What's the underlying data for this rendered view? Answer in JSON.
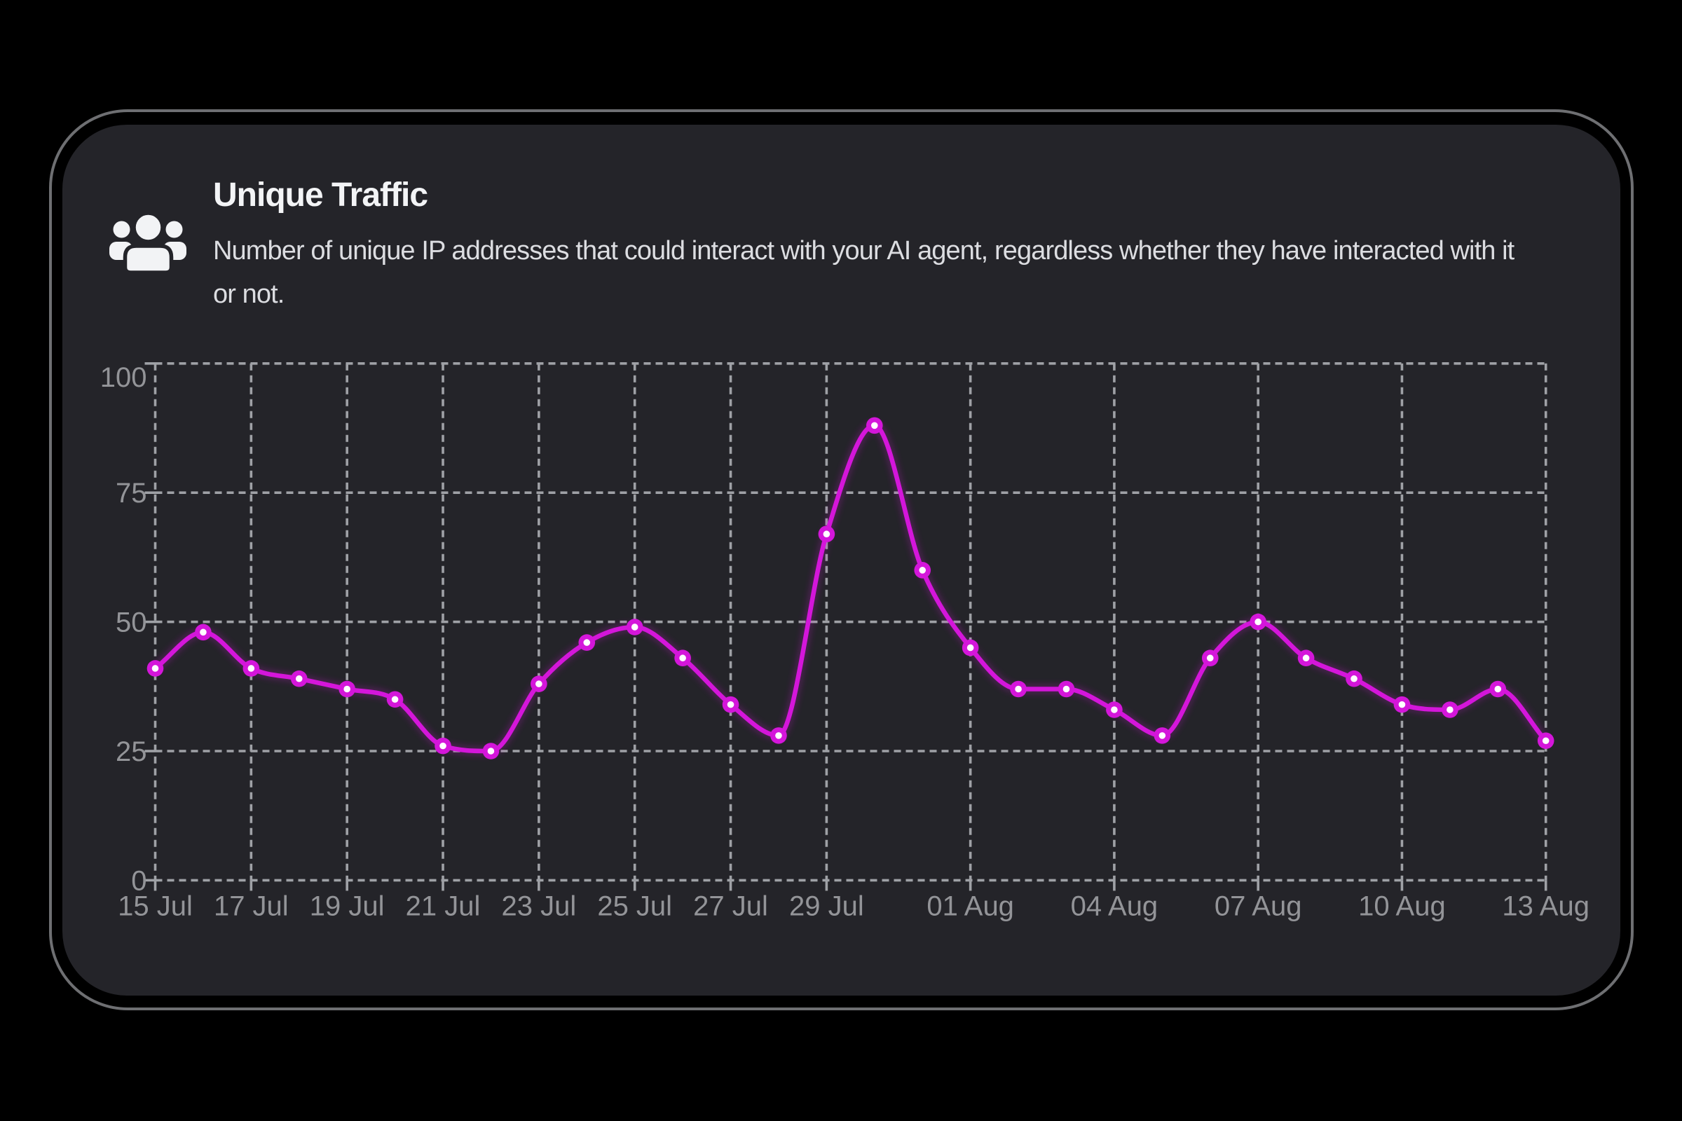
{
  "card": {
    "title": "Unique Traffic",
    "description": "Number of unique IP addresses that could interact with your AI agent, regardless whether they have interacted with it or not.",
    "icon": "people-group-icon",
    "background_color": "#242429",
    "outline_color": "#6e6f72",
    "title_color": "#f3f4f6",
    "description_color": "#dcdde1"
  },
  "chart_data": {
    "type": "line",
    "title": "Unique Traffic",
    "xlabel": "",
    "ylabel": "",
    "categories": [
      "15 Jul",
      "16 Jul",
      "17 Jul",
      "18 Jul",
      "19 Jul",
      "20 Jul",
      "21 Jul",
      "22 Jul",
      "23 Jul",
      "24 Jul",
      "25 Jul",
      "26 Jul",
      "27 Jul",
      "28 Jul",
      "29 Jul",
      "30 Jul",
      "31 Jul",
      "01 Aug",
      "02 Aug",
      "03 Aug",
      "04 Aug",
      "05 Aug",
      "06 Aug",
      "07 Aug",
      "08 Aug",
      "09 Aug",
      "10 Aug",
      "11 Aug",
      "12 Aug",
      "13 Aug"
    ],
    "values": [
      41,
      48,
      41,
      39,
      37,
      35,
      26,
      25,
      38,
      46,
      49,
      43,
      34,
      28,
      67,
      88,
      60,
      45,
      37,
      37,
      33,
      28,
      43,
      50,
      43,
      39,
      34,
      33,
      37,
      27
    ],
    "ylim": [
      0,
      100
    ],
    "y_ticks": [
      0,
      25,
      50,
      75,
      100
    ],
    "x_tick_labels": [
      "15 Jul",
      "17 Jul",
      "19 Jul",
      "21 Jul",
      "23 Jul",
      "25 Jul",
      "27 Jul",
      "29 Jul",
      "01 Aug",
      "04 Aug",
      "07 Aug",
      "10 Aug",
      "13 Aug"
    ],
    "x_tick_indices": [
      0,
      2,
      4,
      6,
      8,
      10,
      12,
      14,
      17,
      20,
      23,
      26,
      29
    ],
    "grid": "dashed",
    "legend": "none",
    "line_color": "#d416da",
    "point_center_color": "#ffffff",
    "grid_color": "#9fa1a6",
    "tick_label_color": "#939498"
  }
}
